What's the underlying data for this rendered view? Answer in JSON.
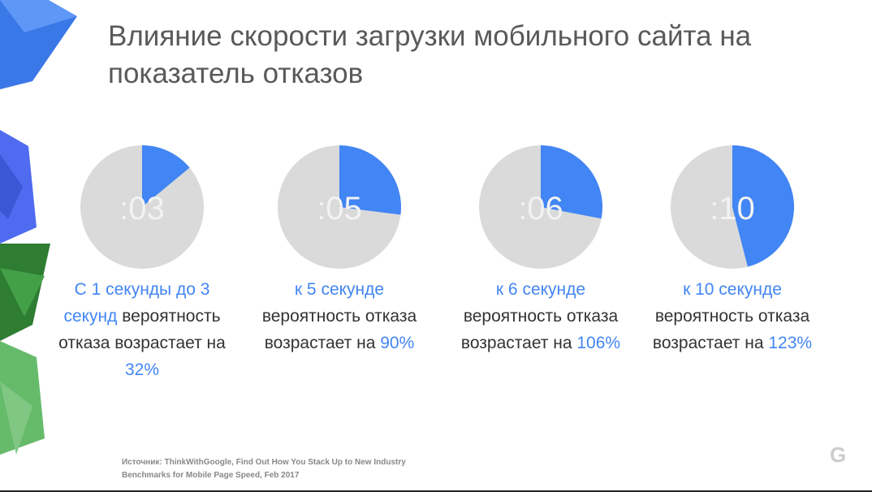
{
  "header": {
    "title": "Влияние скорости загрузки мобильного сайта на показатель отказов"
  },
  "items": [
    {
      "label": ":03",
      "share": 14,
      "highlight": "С 1 секунды до 3 секунд",
      "text": "вероятность отказа возрастает на",
      "value": "32%"
    },
    {
      "label": ":05",
      "share": 27,
      "highlight": "к 5 секунде",
      "text": "вероятность отказа возрастает на",
      "value": "90%"
    },
    {
      "label": ":06",
      "share": 28,
      "highlight": "к 6 секунде",
      "text": "вероятность отказа возрастает на",
      "value": "106%"
    },
    {
      "label": ":10",
      "share": 46,
      "highlight": "к 10 секунде",
      "text": "вероятность отказа возрастает на",
      "value": "123%"
    }
  ],
  "source": {
    "line1": "Источник: ThinkWithGoogle, Find Out How You Stack Up to New Industry",
    "line2": "Benchmarks for Mobile Page Speed, Feb 2017"
  },
  "logo": "G"
}
